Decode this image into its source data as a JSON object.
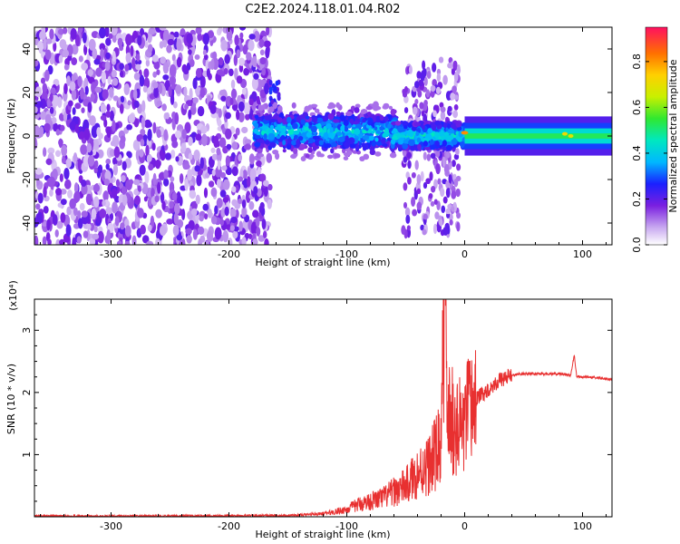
{
  "title": "C2E2.2024.118.01.04.R02",
  "colors": {
    "snr_line": "#e83030",
    "spectrogram_low": "#7a1fe0",
    "spectrogram_mid": "#00d8ff",
    "spectrogram_high": "#ff2a2a"
  },
  "chart_data": [
    {
      "type": "heatmap",
      "name": "spectrogram",
      "xlabel": "Height of straight line (km)",
      "ylabel": "Frequency (Hz)",
      "xlim": [
        -365,
        125
      ],
      "ylim": [
        -50,
        50
      ],
      "xticks": [
        -300,
        -200,
        -100,
        0,
        100
      ],
      "yticks": [
        -40,
        -20,
        0,
        20,
        40
      ],
      "colorbar": {
        "label": "Normalized spectral amplitude",
        "range": [
          0,
          0.95
        ],
        "ticks": [
          0.0,
          0.2,
          0.4,
          0.6,
          0.8
        ]
      },
      "regions": [
        {
          "x_range": [
            -365,
            -165
          ],
          "description": "scattered noise across all frequencies"
        },
        {
          "x_range": [
            -175,
            -60
          ],
          "freq_center": 2,
          "amplitude": 0.35
        },
        {
          "x_range": [
            -60,
            0
          ],
          "freq_center": 0,
          "amplitude": 0.45
        },
        {
          "x_range": [
            0,
            125
          ],
          "freq_center": 0,
          "amplitude": 0.5
        }
      ]
    },
    {
      "type": "line",
      "name": "snr",
      "xlabel": "Height of straight line (km)",
      "ylabel": "SNR (10 * v/v)",
      "yscale_label": "(x10⁴)",
      "xlim": [
        -365,
        125
      ],
      "ylim": [
        0,
        3.5
      ],
      "xticks": [
        -300,
        -200,
        -100,
        0,
        100
      ],
      "yticks": [
        1,
        2,
        3
      ],
      "series": [
        {
          "x": [
            -365,
            -300,
            -250,
            -200,
            -150,
            -130,
            -120,
            -110,
            -100,
            -90,
            -80,
            -70,
            -60,
            -50,
            -40,
            -30,
            -25,
            -20,
            -18,
            -17,
            -15,
            -10,
            -5,
            0,
            5,
            10,
            20,
            30,
            40,
            50,
            60,
            70,
            80,
            90,
            93,
            95,
            100,
            110,
            120,
            125
          ],
          "y": [
            0.01,
            0.01,
            0.01,
            0.015,
            0.02,
            0.04,
            0.05,
            0.08,
            0.12,
            0.2,
            0.25,
            0.3,
            0.4,
            0.5,
            0.7,
            0.85,
            1.0,
            1.2,
            2.0,
            3.5,
            1.6,
            1.5,
            1.4,
            1.5,
            1.7,
            1.9,
            2.05,
            2.2,
            2.28,
            2.3,
            2.3,
            2.3,
            2.3,
            2.28,
            2.6,
            2.25,
            2.25,
            2.24,
            2.22,
            2.2
          ]
        }
      ]
    }
  ]
}
